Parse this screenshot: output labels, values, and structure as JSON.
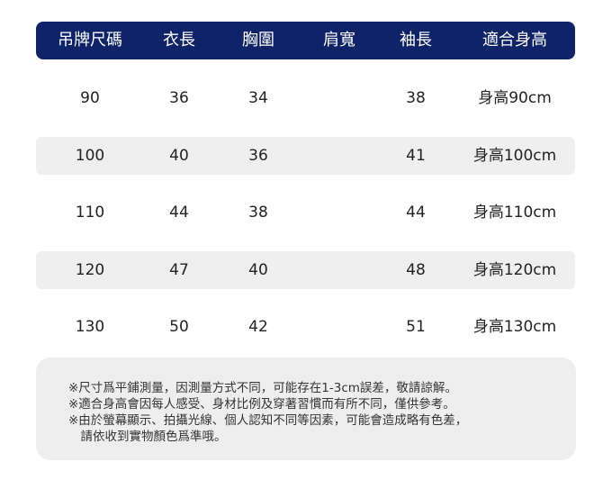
{
  "table": {
    "headers": [
      "吊牌尺碼",
      "衣長",
      "胸圍",
      "肩寬",
      "袖長",
      "適合身高"
    ],
    "rows": [
      [
        "90",
        "36",
        "34",
        "",
        "38",
        "身高90cm"
      ],
      [
        "100",
        "40",
        "36",
        "",
        "41",
        "身高100cm"
      ],
      [
        "110",
        "44",
        "38",
        "",
        "44",
        "身高110cm"
      ],
      [
        "120",
        "47",
        "40",
        "",
        "48",
        "身高120cm"
      ],
      [
        "130",
        "50",
        "42",
        "",
        "51",
        "身高130cm"
      ]
    ]
  },
  "notes": [
    "※尺寸爲平鋪測量，因測量方式不同，可能存在1-3cm誤差，敬請諒解。",
    "※適合身高會因每人感受、身材比例及穿著習慣而有所不同，僅供參考。",
    "※由於螢幕顯示、拍攝光線、個人認知不同等因素，可能會造成略有色差，",
    "　請依收到實物顏色爲準哦。"
  ],
  "colors": {
    "header_bg": "#0f2468",
    "stripe": "#efefef"
  }
}
